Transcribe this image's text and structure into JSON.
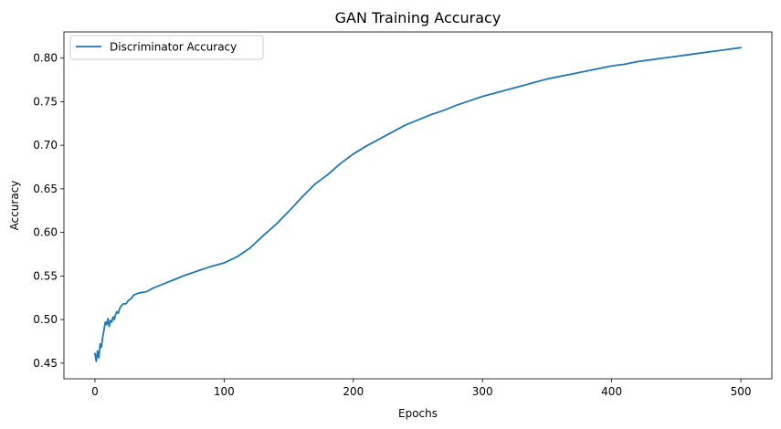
{
  "chart_data": {
    "type": "line",
    "title": "GAN Training Accuracy",
    "xlabel": "Epochs",
    "ylabel": "Accuracy",
    "xlim": [
      -24,
      524
    ],
    "ylim": [
      0.432,
      0.83
    ],
    "x_ticks": [
      0,
      100,
      200,
      300,
      400,
      500
    ],
    "y_ticks": [
      0.45,
      0.5,
      0.55,
      0.6,
      0.65,
      0.7,
      0.75,
      0.8
    ],
    "x_tick_labels": [
      "0",
      "100",
      "200",
      "300",
      "400",
      "500"
    ],
    "y_tick_labels": [
      "0.45",
      "0.50",
      "0.55",
      "0.60",
      "0.65",
      "0.70",
      "0.75",
      "0.80"
    ],
    "grid": false,
    "legend": {
      "position": "top-left"
    },
    "colors": {
      "series": "#1f77b4"
    },
    "series": [
      {
        "name": "Discriminator Accuracy",
        "x": [
          0,
          1,
          2,
          3,
          4,
          5,
          6,
          7,
          8,
          9,
          10,
          11,
          12,
          13,
          14,
          15,
          16,
          17,
          18,
          19,
          20,
          22,
          24,
          26,
          28,
          30,
          33,
          36,
          40,
          45,
          50,
          55,
          60,
          70,
          80,
          90,
          100,
          110,
          120,
          130,
          140,
          150,
          160,
          170,
          180,
          190,
          200,
          210,
          220,
          230,
          240,
          250,
          260,
          270,
          280,
          290,
          300,
          310,
          320,
          330,
          340,
          350,
          360,
          370,
          380,
          390,
          400,
          410,
          420,
          430,
          440,
          450,
          460,
          470,
          480,
          490,
          500
        ],
        "y": [
          0.461,
          0.452,
          0.464,
          0.456,
          0.472,
          0.468,
          0.48,
          0.488,
          0.497,
          0.494,
          0.501,
          0.492,
          0.499,
          0.497,
          0.503,
          0.5,
          0.506,
          0.509,
          0.507,
          0.512,
          0.515,
          0.518,
          0.518,
          0.522,
          0.524,
          0.528,
          0.53,
          0.531,
          0.532,
          0.536,
          0.539,
          0.542,
          0.545,
          0.551,
          0.556,
          0.561,
          0.565,
          0.572,
          0.582,
          0.596,
          0.609,
          0.624,
          0.64,
          0.655,
          0.666,
          0.679,
          0.69,
          0.699,
          0.707,
          0.715,
          0.723,
          0.729,
          0.735,
          0.74,
          0.746,
          0.751,
          0.756,
          0.76,
          0.764,
          0.768,
          0.772,
          0.776,
          0.779,
          0.782,
          0.785,
          0.788,
          0.791,
          0.793,
          0.796,
          0.798,
          0.8,
          0.802,
          0.804,
          0.806,
          0.808,
          0.81,
          0.812
        ]
      }
    ]
  }
}
